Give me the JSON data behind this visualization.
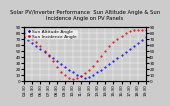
{
  "title": "Solar PV/Inverter Performance  Sun Altitude Angle & Sun Incidence Angle on PV Panels",
  "background_color": "#cccccc",
  "plot_bg_color": "#cccccc",
  "grid_color": "#ffffff",
  "blue_label": "Sun Altitude Angle",
  "red_label": "Sun Incidence Angle",
  "x_times": [
    4.5,
    5.0,
    5.5,
    6.0,
    6.5,
    7.0,
    7.5,
    8.0,
    8.5,
    9.0,
    9.5,
    10.0,
    10.5,
    11.0,
    11.5,
    12.0,
    12.5,
    13.0,
    13.5,
    14.0,
    14.5,
    15.0,
    15.5,
    16.0,
    16.5,
    17.0,
    17.5,
    18.0,
    18.5,
    19.0,
    19.5
  ],
  "blue_y": [
    72,
    68,
    63,
    58,
    53,
    48,
    43,
    38,
    33,
    28,
    23,
    18,
    14,
    10,
    7,
    4,
    6,
    10,
    14,
    18,
    23,
    28,
    33,
    38,
    43,
    48,
    53,
    58,
    63,
    68,
    72
  ],
  "red_y": [
    80,
    75,
    70,
    64,
    57,
    49,
    41,
    32,
    23,
    15,
    9,
    5,
    3,
    4,
    7,
    12,
    18,
    25,
    33,
    41,
    49,
    57,
    64,
    70,
    75,
    79,
    82,
    84,
    85,
    85,
    84
  ],
  "ylim": [
    0,
    90
  ],
  "x_tick_labels": [
    "04:30",
    "05:30",
    "06:30",
    "07:30",
    "08:30",
    "09:30",
    "10:30",
    "11:30",
    "12:30",
    "13:30",
    "14:30",
    "15:30",
    "16:30",
    "17:30",
    "18:30",
    "19:30"
  ],
  "x_tick_positions": [
    4.5,
    5.5,
    6.5,
    7.5,
    8.5,
    9.5,
    10.5,
    11.5,
    12.5,
    13.5,
    14.5,
    15.5,
    16.5,
    17.5,
    18.5,
    19.5
  ],
  "yticks": [
    0,
    10,
    20,
    30,
    40,
    50,
    60,
    70,
    80,
    90
  ],
  "title_fontsize": 3.8,
  "tick_fontsize": 3.0,
  "legend_fontsize": 3.2,
  "marker_size": 1.0,
  "blue_color": "#0000dd",
  "red_color": "#dd0000",
  "xlim": [
    4.5,
    19.5
  ]
}
